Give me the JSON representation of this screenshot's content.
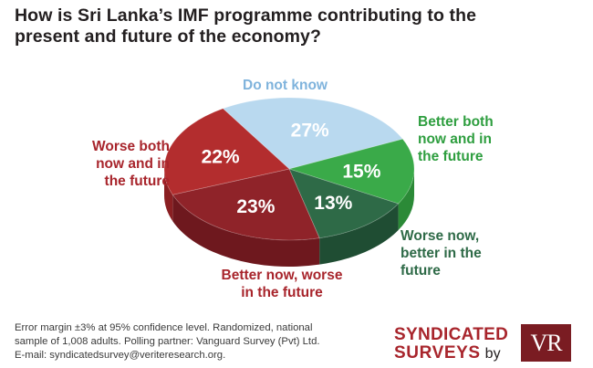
{
  "title": {
    "line1": "How is Sri Lanka’s IMF programme contributing to the",
    "line2": "present and future of the economy?"
  },
  "chart_data": {
    "type": "pie",
    "title": "How is Sri Lanka’s IMF programme contributing to the present and future of the economy?",
    "slices": [
      {
        "name": "Do not know",
        "label_lines": [
          "Do not know"
        ],
        "value": 27,
        "value_label": "27%",
        "color": "#b9d9ef",
        "side": "#9cbdd6"
      },
      {
        "name": "Better both now and in the future",
        "label_lines": [
          "Better both",
          "now and in",
          "the future"
        ],
        "value": 15,
        "value_label": "15%",
        "color": "#3aaa49",
        "side": "#2b8a37"
      },
      {
        "name": "Worse now, better in the future",
        "label_lines": [
          "Worse now,",
          "better in the",
          "future"
        ],
        "value": 13,
        "value_label": "13%",
        "color": "#2e6a47",
        "side": "#1f4d33"
      },
      {
        "name": "Better now, worse in the future",
        "label_lines": [
          "Better now, worse",
          "in the future"
        ],
        "value": 23,
        "value_label": "23%",
        "color": "#8f2329",
        "side": "#6e181e"
      },
      {
        "name": "Worse both now and in the future",
        "label_lines": [
          "Worse both",
          "now and in",
          "the future"
        ],
        "value": 22,
        "value_label": "22%",
        "color": "#b32d2e",
        "side": "#8a1f22"
      }
    ]
  },
  "footer": {
    "line1": "Error margin ±3% at 95% confidence level. Randomized, national",
    "line2": "sample of 1,008 adults. Polling partner: Vanguard Survey (Pvt) Ltd.",
    "line3": "E-mail: syndicatedsurvey@veriteresearch.org."
  },
  "brand": {
    "line1": "SYNDICATED",
    "line2": "SURVEYS",
    "by": "by",
    "logo": "VR"
  }
}
